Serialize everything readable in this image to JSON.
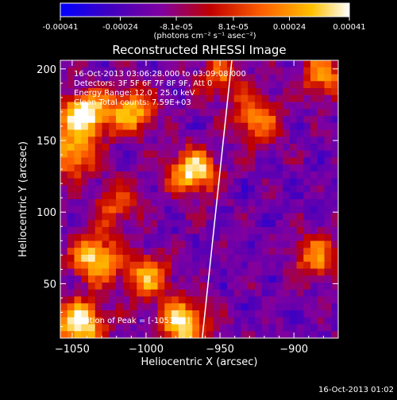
{
  "colorbar": {
    "tick_labels": [
      "-0.00041",
      "-0.00024",
      "-8.1e-05",
      "8.1e-05",
      "0.00024",
      "0.00041"
    ],
    "tick_values": [
      -0.00041,
      -0.00024,
      -8.1e-05,
      8.1e-05,
      0.00024,
      0.00041
    ],
    "range": [
      -0.00041,
      0.00041
    ],
    "unit_label": "(photons cm⁻² s⁻¹ asec⁻²)",
    "colors": [
      "#0000ff",
      "#4000c0",
      "#8000a0",
      "#c00000",
      "#ff6000",
      "#ffc000",
      "#ffffff"
    ]
  },
  "chart_data": {
    "type": "heatmap",
    "title": "Reconstructed RHESSI Image",
    "xlabel": "Heliocentric X (arcsec)",
    "ylabel": "Heliocentric Y (arcsec)",
    "xlim": [
      -1058,
      -870
    ],
    "ylim": [
      12,
      206
    ],
    "x_ticks": [
      -1050,
      -1000,
      -950,
      -900
    ],
    "x_tick_labels": [
      "−1050",
      "−1000",
      "−950",
      "−900"
    ],
    "y_ticks": [
      50,
      100,
      150,
      200
    ],
    "y_tick_labels": [
      "50",
      "100",
      "150",
      "200"
    ],
    "limb_line": {
      "x": [
        -962,
        -942
      ],
      "y": [
        12,
        206
      ]
    },
    "hot_spots": [
      {
        "x": -1042,
        "y": 168,
        "strength": 1.0
      },
      {
        "x": -1045,
        "y": 22,
        "strength": 1.0
      },
      {
        "x": -975,
        "y": 22,
        "strength": 0.95
      },
      {
        "x": -1035,
        "y": 68,
        "strength": 0.85
      },
      {
        "x": -968,
        "y": 128,
        "strength": 0.9
      },
      {
        "x": -1010,
        "y": 170,
        "strength": 0.75
      },
      {
        "x": -925,
        "y": 165,
        "strength": 0.65
      },
      {
        "x": -1050,
        "y": 140,
        "strength": 0.7
      },
      {
        "x": -1000,
        "y": 55,
        "strength": 0.7
      },
      {
        "x": -885,
        "y": 68,
        "strength": 0.6
      },
      {
        "x": -880,
        "y": 195,
        "strength": 0.6
      },
      {
        "x": -950,
        "y": 195,
        "strength": 0.5
      },
      {
        "x": -1020,
        "y": 105,
        "strength": 0.45
      }
    ],
    "info_lines": [
      "16-Oct-2013 03:06:28.000 to 03:09:08.000",
      "Detectors: 3F 5F 6F 7F 8F 9F, Att 0",
      "Energy Range: 12.0 - 25.0 keV",
      "Clean     Total counts: 7.59E+03"
    ],
    "peak_label": "Position of Peak = [-1053,21]"
  },
  "footer": {
    "timestamp": "16-Oct-2013 01:02"
  }
}
